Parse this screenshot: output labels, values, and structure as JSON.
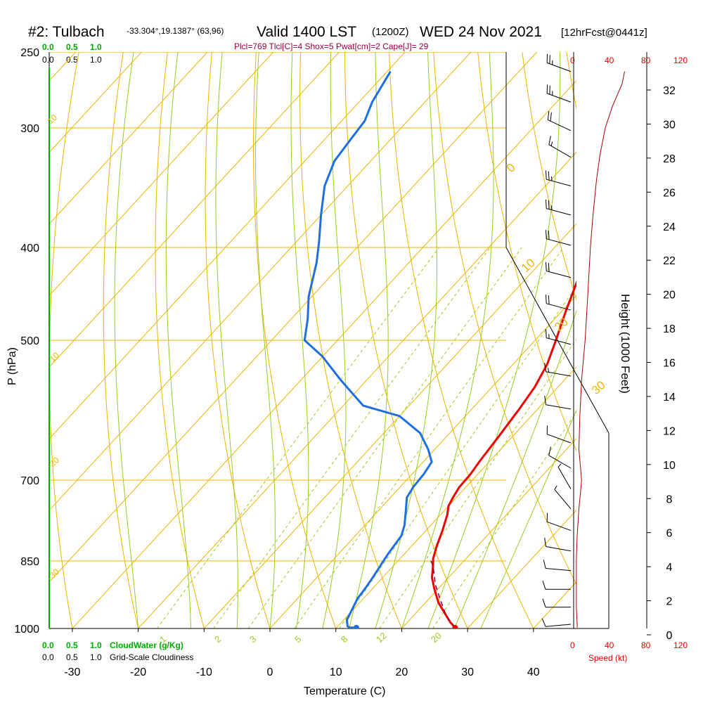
{
  "header": {
    "station": "#2: Tulbach",
    "coords": "-33.304°,19.1387° (63,96)",
    "valid": "Valid 1400 LST",
    "utc": "(1200Z)",
    "date": "WED 24 Nov 2021",
    "forecast": "[12hrFcst@0441z]",
    "indices": "Plcl=769 Tlcl[C]=4 Shox=5 Pwat[cm]=2 Cape[J]= 29"
  },
  "labels": {
    "y_axis": "P (hPa)",
    "x_axis": "Temperature (C)",
    "height_axis": "Height (1000 Feet)",
    "cloud_water": "CloudWater (g/Kg)",
    "cloudiness": "Grid-Scale Cloudiness",
    "speed": "Speed (kt)"
  },
  "scales": {
    "cloud_water_ticks": [
      "0.0",
      "0.5",
      "1.0"
    ],
    "cloudiness_ticks": [
      "0.0",
      "0.5",
      "1.0"
    ],
    "speed_ticks": [
      "0",
      "40",
      "80",
      "120"
    ]
  },
  "colors": {
    "temperature": "#ee0000",
    "dewpoint": "#1e6fe0",
    "isotherm": "#f0b400",
    "dry_adiabat": "#f0b400",
    "moist_adiabat": "#99cc22",
    "mixing_ratio": "#99cc22",
    "cloud_water": "#00aa00",
    "parcel": "#880033",
    "title_indices": "#990044",
    "wind_speed": "#aa0000"
  },
  "chart_data": {
    "type": "line",
    "title": "#2: Tulbach -33.304°,19.1387° (63,96) Valid 1400 LST (1200Z) WED 24 Nov 2021 [12hrFcst@0441z]",
    "xlabel": "Temperature (C)",
    "ylabel": "P (hPa)",
    "xticks": [
      -30,
      -20,
      -10,
      0,
      10,
      20,
      30,
      40
    ],
    "yticks": [
      250,
      300,
      400,
      500,
      700,
      850,
      1000
    ],
    "ylim": [
      1000,
      250
    ],
    "log_pressure": true,
    "height_axis_ticks": [
      0,
      2,
      4,
      6,
      8,
      10,
      12,
      14,
      16,
      18,
      20,
      22,
      24,
      26,
      28,
      30,
      32
    ],
    "isotherm_labels": [
      "0",
      "10",
      "20",
      "30",
      "-10",
      "-20",
      "-30",
      "10"
    ],
    "mixing_ratio_labels": [
      "1",
      "2",
      "3",
      "5",
      "8",
      "12",
      "20"
    ],
    "series": [
      {
        "name": "Temperature",
        "points": [
          [
            28.0,
            998
          ],
          [
            27.4,
            993
          ],
          [
            26.5,
            985
          ],
          [
            24.5,
            965
          ],
          [
            22.0,
            940
          ],
          [
            19.5,
            910
          ],
          [
            17.5,
            885
          ],
          [
            16.3,
            865
          ],
          [
            15.0,
            845
          ],
          [
            13.8,
            820
          ],
          [
            12.5,
            790
          ],
          [
            11.0,
            760
          ],
          [
            10.0,
            745
          ],
          [
            9.5,
            730
          ],
          [
            9.0,
            712
          ],
          [
            8.9,
            690
          ],
          [
            8.5,
            670
          ],
          [
            7.9,
            630
          ],
          [
            7.2,
            590
          ],
          [
            6.5,
            560
          ],
          [
            5.2,
            530
          ],
          [
            3.3,
            502
          ],
          [
            0.5,
            465
          ],
          [
            -2.0,
            432
          ],
          [
            -4.7,
            400
          ],
          [
            -7.5,
            370
          ],
          [
            -10.0,
            345
          ],
          [
            -12.5,
            322
          ],
          [
            -14.8,
            300
          ],
          [
            -17.5,
            280
          ],
          [
            -20.5,
            262
          ]
        ]
      },
      {
        "name": "Dewpoint",
        "points": [
          [
            13.0,
            998
          ],
          [
            12.0,
            998
          ],
          [
            11.5,
            995
          ],
          [
            10.5,
            980
          ],
          [
            9.8,
            955
          ],
          [
            9.1,
            930
          ],
          [
            8.9,
            910
          ],
          [
            8.5,
            885
          ],
          [
            8.0,
            860
          ],
          [
            7.5,
            835
          ],
          [
            7.0,
            800
          ],
          [
            6.0,
            780
          ],
          [
            4.3,
            755
          ],
          [
            2.5,
            730
          ],
          [
            2.0,
            712
          ],
          [
            1.8,
            690
          ],
          [
            1.3,
            670
          ],
          [
            -1.0,
            650
          ],
          [
            -4.5,
            625
          ],
          [
            -10.0,
            600
          ],
          [
            -17.0,
            585
          ],
          [
            -24.0,
            550
          ],
          [
            -30.0,
            520
          ],
          [
            -35.0,
            500
          ],
          [
            -37.5,
            475
          ],
          [
            -40.5,
            450
          ],
          [
            -44.0,
            415
          ],
          [
            -46.5,
            395
          ],
          [
            -50.0,
            370
          ],
          [
            -53.5,
            345
          ],
          [
            -55.5,
            325
          ],
          [
            -56.0,
            310
          ],
          [
            -56.5,
            295
          ],
          [
            -58.0,
            282
          ],
          [
            -59.5,
            262
          ]
        ]
      },
      {
        "name": "Parcel",
        "points": [
          [
            28.0,
            998
          ],
          [
            25.0,
            970
          ],
          [
            22.0,
            935
          ],
          [
            19.0,
            900
          ],
          [
            16.0,
            860
          ],
          [
            15.0,
            850
          ]
        ]
      }
    ],
    "wind_speed_profile_kt": [
      [
        4,
        998
      ],
      [
        4,
        990
      ],
      [
        3,
        950
      ],
      [
        3,
        900
      ],
      [
        3,
        850
      ],
      [
        4,
        800
      ],
      [
        6,
        750
      ],
      [
        9,
        700
      ],
      [
        6,
        650
      ],
      [
        7,
        600
      ],
      [
        9,
        550
      ],
      [
        13,
        500
      ],
      [
        16,
        450
      ],
      [
        19,
        400
      ],
      [
        22,
        370
      ],
      [
        26,
        340
      ],
      [
        30,
        320
      ],
      [
        36,
        300
      ],
      [
        44,
        285
      ],
      [
        55,
        270
      ],
      [
        58,
        262
      ]
    ],
    "wind_barbs": [
      {
        "p": 262,
        "spd": 25,
        "dir": 290
      },
      {
        "p": 282,
        "spd": 25,
        "dir": 290
      },
      {
        "p": 302,
        "spd": 20,
        "dir": 295
      },
      {
        "p": 322,
        "spd": 15,
        "dir": 300
      },
      {
        "p": 345,
        "spd": 25,
        "dir": 285
      },
      {
        "p": 370,
        "spd": 25,
        "dir": 285
      },
      {
        "p": 398,
        "spd": 20,
        "dir": 285
      },
      {
        "p": 430,
        "spd": 20,
        "dir": 285
      },
      {
        "p": 465,
        "spd": 20,
        "dir": 285
      },
      {
        "p": 505,
        "spd": 15,
        "dir": 285
      },
      {
        "p": 545,
        "spd": 15,
        "dir": 280
      },
      {
        "p": 590,
        "spd": 10,
        "dir": 280
      },
      {
        "p": 640,
        "spd": 10,
        "dir": 290
      },
      {
        "p": 680,
        "spd": 10,
        "dir": 300
      },
      {
        "p": 715,
        "spd": 5,
        "dir": 330
      },
      {
        "p": 750,
        "spd": 5,
        "dir": 320
      },
      {
        "p": 790,
        "spd": 10,
        "dir": 290
      },
      {
        "p": 830,
        "spd": 10,
        "dir": 280
      },
      {
        "p": 870,
        "spd": 10,
        "dir": 275
      },
      {
        "p": 910,
        "spd": 10,
        "dir": 270
      },
      {
        "p": 950,
        "spd": 10,
        "dir": 270
      },
      {
        "p": 990,
        "spd": 10,
        "dir": 265
      }
    ],
    "surface_markers": [
      {
        "name": "Surface temperature",
        "t": 28,
        "p": 998,
        "color": "#ee0000"
      },
      {
        "name": "Surface dewpoint",
        "t": 13,
        "p": 998,
        "color": "#1e6fe0"
      }
    ]
  }
}
